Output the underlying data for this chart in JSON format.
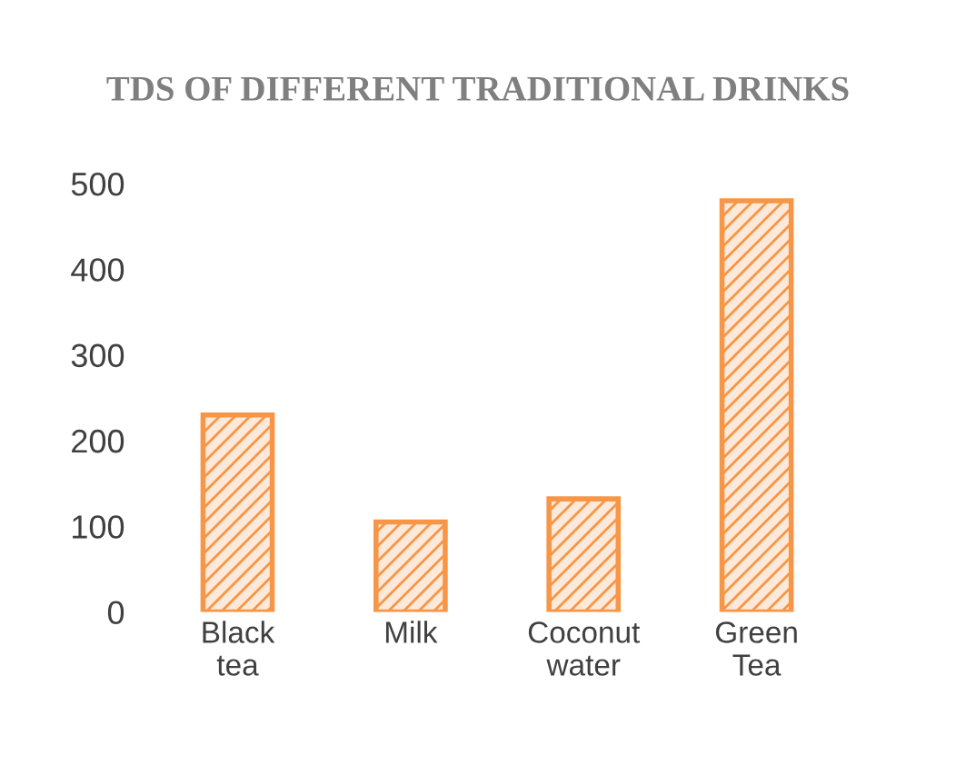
{
  "chart_data": {
    "type": "bar",
    "title": "TDS OF DIFFERENT TRADITIONAL DRINKS",
    "categories": [
      "Black tea",
      "Milk",
      "Coconut water",
      "Green Tea"
    ],
    "values": [
      230,
      105,
      132,
      480
    ],
    "color": "#f79646",
    "ylim": [
      0,
      500
    ],
    "yticks": [
      0,
      100,
      200,
      300,
      400,
      500
    ],
    "grid": false,
    "legend": false
  }
}
